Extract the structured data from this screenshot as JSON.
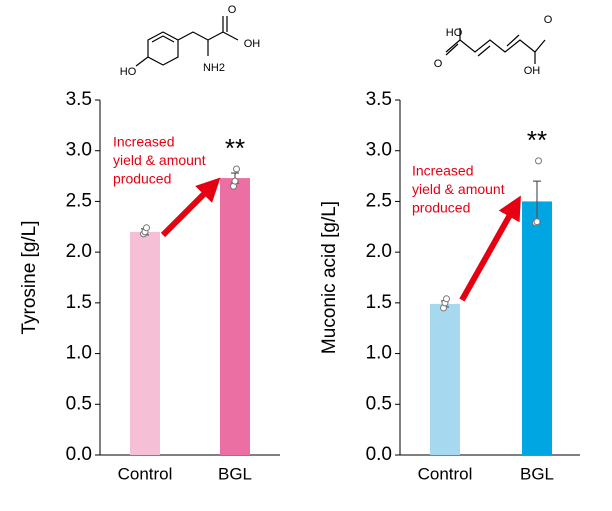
{
  "chart_data": [
    {
      "type": "bar",
      "ylabel": "Tyrosine  [g/L]",
      "categories": [
        "Control",
        "BGL"
      ],
      "values": [
        2.2,
        2.73
      ],
      "errors": [
        0.03,
        0.05
      ],
      "points": [
        [
          2.18,
          2.2,
          2.24
        ],
        [
          2.65,
          2.7,
          2.82
        ]
      ],
      "colors": [
        "#f5bfd6",
        "#ec6fa3"
      ],
      "ylim": [
        0,
        3.5
      ],
      "yticks": [
        {
          "value": 0,
          "label": "0.0"
        },
        {
          "value": 0.5,
          "label": "0.5"
        },
        {
          "value": 1,
          "label": "1.0"
        },
        {
          "value": 1.5,
          "label": "1.5"
        },
        {
          "value": 2,
          "label": "2.0"
        },
        {
          "value": 2.5,
          "label": "2.5"
        },
        {
          "value": 3,
          "label": "3.0"
        },
        {
          "value": 3.5,
          "label": "3.5"
        }
      ],
      "annotation": [
        "Increased",
        "yield & amount",
        "produced"
      ],
      "significance": "**",
      "structure_labels": [
        "HO",
        "OH",
        "O",
        "NH2"
      ]
    },
    {
      "type": "bar",
      "ylabel": "Muconic acid  [g/L]",
      "categories": [
        "Control",
        "BGL"
      ],
      "values": [
        1.49,
        2.5
      ],
      "errors": [
        0.03,
        0.2
      ],
      "points": [
        [
          1.45,
          1.5,
          1.54
        ],
        [
          2.29,
          2.3,
          2.9
        ]
      ],
      "colors": [
        "#a6d8f0",
        "#00a6e2"
      ],
      "ylim": [
        0,
        3.5
      ],
      "yticks": [
        {
          "value": 0,
          "label": "0.0"
        },
        {
          "value": 0.5,
          "label": "0.5"
        },
        {
          "value": 1,
          "label": "1.0"
        },
        {
          "value": 1.5,
          "label": "1.5"
        },
        {
          "value": 2,
          "label": "2.0"
        },
        {
          "value": 2.5,
          "label": "2.5"
        },
        {
          "value": 3,
          "label": "3.0"
        },
        {
          "value": 3.5,
          "label": "3.5"
        }
      ],
      "annotation": [
        "Increased",
        "yield & amount",
        "produced"
      ],
      "significance": "**",
      "structure_labels": [
        "HO",
        "O",
        "O",
        "OH"
      ]
    }
  ]
}
